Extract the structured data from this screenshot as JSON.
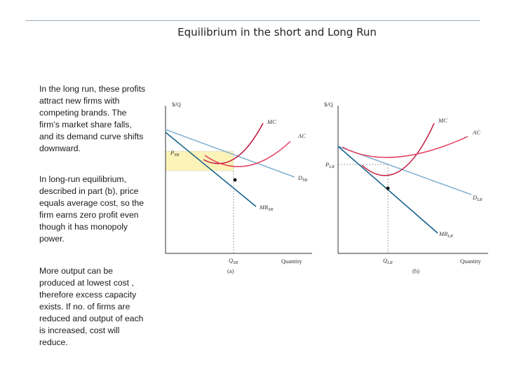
{
  "title": "Equilibrium in the short and Long Run",
  "paragraphs": [
    "In the long run, these profits attract new firms with competing brands. The firm’s market share falls, and its demand curve shifts downward.",
    "In long-run equilibrium, described in part (b), price equals average cost, so the firm earns zero profit even though it has monopoly power.",
    "More output can be produced at lowest cost , therefore excess capacity exists. If no. of firms are reduced and output of each is increased, cost will reduce."
  ],
  "diagram_a": {
    "y_axis": "$/Q",
    "x_axis": "Quantity",
    "caption": "(a)",
    "price": "P",
    "price_sub": "SR",
    "quantity": "Q",
    "quantity_sub": "SR",
    "mc": "MC",
    "ac": "AC",
    "demand": "D",
    "demand_sub": "SR",
    "mr": "MR",
    "mr_sub": "SR"
  },
  "diagram_b": {
    "y_axis": "$/Q",
    "x_axis": "Quantity",
    "caption": "(b)",
    "price": "P",
    "price_sub": "LR",
    "quantity": "Q",
    "quantity_sub": "LR",
    "mc": "MC",
    "ac": "AC",
    "demand": "D",
    "demand_sub": "LR",
    "mr": "MR",
    "mr_sub": "LR"
  },
  "colors": {
    "mc": "#c0143c",
    "ac": "#e23a5a",
    "demand": "#7fb0cf",
    "mr": "#0f5d88",
    "profit_box": "#fbf3b8",
    "axis": "#333333"
  }
}
